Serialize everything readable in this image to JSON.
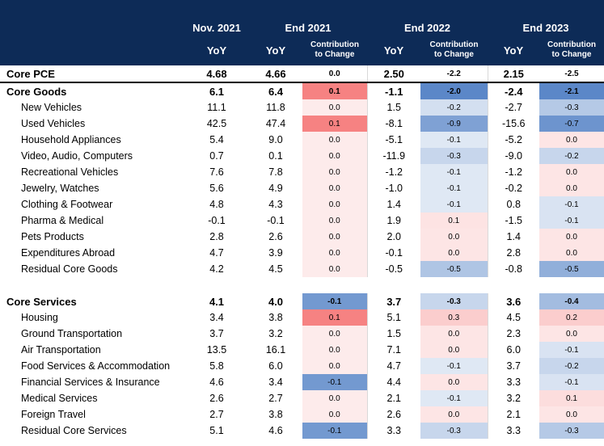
{
  "header": {
    "groups": [
      "Nov. 2021",
      "End 2021",
      "End 2022",
      "End 2023"
    ],
    "yoy_label": "YoY",
    "contrib_label_line1": "Contribution",
    "contrib_label_line2": "to Change"
  },
  "core_pce": {
    "name": "Core PCE",
    "nov21": "4.68",
    "e21": "4.66",
    "c21": "0.0",
    "e22": "2.50",
    "c22": "-2.2",
    "e23": "2.15",
    "c23": "-2.5"
  },
  "goods": [
    {
      "name": "Core Goods",
      "nov21": "6.1",
      "e21": "6.4",
      "c21": "0.1",
      "e22": "-1.1",
      "c22": "-2.0",
      "e23": "-2.4",
      "c23": "-2.1"
    },
    {
      "name": "New Vehicles",
      "nov21": "11.1",
      "e21": "11.8",
      "c21": "0.0",
      "e22": "1.5",
      "c22": "-0.2",
      "e23": "-2.7",
      "c23": "-0.3"
    },
    {
      "name": "Used Vehicles",
      "nov21": "42.5",
      "e21": "47.4",
      "c21": "0.1",
      "e22": "-8.1",
      "c22": "-0.9",
      "e23": "-15.6",
      "c23": "-0.7"
    },
    {
      "name": "Household Appliances",
      "nov21": "5.4",
      "e21": "9.0",
      "c21": "0.0",
      "e22": "-5.1",
      "c22": "-0.1",
      "e23": "-5.2",
      "c23": "0.0"
    },
    {
      "name": "Video, Audio, Computers",
      "nov21": "0.7",
      "e21": "0.1",
      "c21": "0.0",
      "e22": "-11.9",
      "c22": "-0.3",
      "e23": "-9.0",
      "c23": "-0.2"
    },
    {
      "name": "Recreational Vehicles",
      "nov21": "7.6",
      "e21": "7.8",
      "c21": "0.0",
      "e22": "-1.2",
      "c22": "-0.1",
      "e23": "-1.2",
      "c23": "0.0"
    },
    {
      "name": "Jewelry, Watches",
      "nov21": "5.6",
      "e21": "4.9",
      "c21": "0.0",
      "e22": "-1.0",
      "c22": "-0.1",
      "e23": "-0.2",
      "c23": "0.0"
    },
    {
      "name": "Clothing & Footwear",
      "nov21": "4.8",
      "e21": "4.3",
      "c21": "0.0",
      "e22": "1.4",
      "c22": "-0.1",
      "e23": "0.8",
      "c23": "-0.1"
    },
    {
      "name": "Pharma & Medical",
      "nov21": "-0.1",
      "e21": "-0.1",
      "c21": "0.0",
      "e22": "1.9",
      "c22": "0.1",
      "e23": "-1.5",
      "c23": "-0.1"
    },
    {
      "name": "Pets Products",
      "nov21": "2.8",
      "e21": "2.6",
      "c21": "0.0",
      "e22": "2.0",
      "c22": "0.0",
      "e23": "1.4",
      "c23": "0.0"
    },
    {
      "name": "Expenditures Abroad",
      "nov21": "4.7",
      "e21": "3.9",
      "c21": "0.0",
      "e22": "-0.1",
      "c22": "0.0",
      "e23": "2.8",
      "c23": "0.0"
    },
    {
      "name": "Residual Core Goods",
      "nov21": "4.2",
      "e21": "4.5",
      "c21": "0.0",
      "e22": "-0.5",
      "c22": "-0.5",
      "e23": "-0.8",
      "c23": "-0.5"
    }
  ],
  "services": [
    {
      "name": "Core Services",
      "nov21": "4.1",
      "e21": "4.0",
      "c21": "-0.1",
      "e22": "3.7",
      "c22": "-0.3",
      "e23": "3.6",
      "c23": "-0.4"
    },
    {
      "name": "Housing",
      "nov21": "3.4",
      "e21": "3.8",
      "c21": "0.1",
      "e22": "5.1",
      "c22": "0.3",
      "e23": "4.5",
      "c23": "0.2"
    },
    {
      "name": "Ground Transportation",
      "nov21": "3.7",
      "e21": "3.2",
      "c21": "0.0",
      "e22": "1.5",
      "c22": "0.0",
      "e23": "2.3",
      "c23": "0.0"
    },
    {
      "name": "Air Transportation",
      "nov21": "13.5",
      "e21": "16.1",
      "c21": "0.0",
      "e22": "7.1",
      "c22": "0.0",
      "e23": "6.0",
      "c23": "-0.1"
    },
    {
      "name": "Food Services & Accommodation",
      "nov21": "5.8",
      "e21": "6.0",
      "c21": "0.0",
      "e22": "4.7",
      "c22": "-0.1",
      "e23": "3.7",
      "c23": "-0.2"
    },
    {
      "name": "Financial Services & Insurance",
      "nov21": "4.6",
      "e21": "3.4",
      "c21": "-0.1",
      "e22": "4.4",
      "c22": "0.0",
      "e23": "3.3",
      "c23": "-0.1"
    },
    {
      "name": "Medical Services",
      "nov21": "2.6",
      "e21": "2.7",
      "c21": "0.0",
      "e22": "2.1",
      "c22": "-0.1",
      "e23": "3.2",
      "c23": "0.1"
    },
    {
      "name": "Foreign Travel",
      "nov21": "2.7",
      "e21": "3.8",
      "c21": "0.0",
      "e22": "2.6",
      "c22": "0.0",
      "e23": "2.1",
      "c23": "0.0"
    },
    {
      "name": "Residual Core Services",
      "nov21": "5.1",
      "e21": "4.6",
      "c21": "-0.1",
      "e22": "3.3",
      "c22": "-0.3",
      "e23": "3.3",
      "c23": "-0.3"
    }
  ],
  "colors": {
    "header_bg": "#0d2b57",
    "header_text": "#ffffff",
    "heat_positive": "#f46d6d",
    "heat_negative": "#5b87c8"
  }
}
